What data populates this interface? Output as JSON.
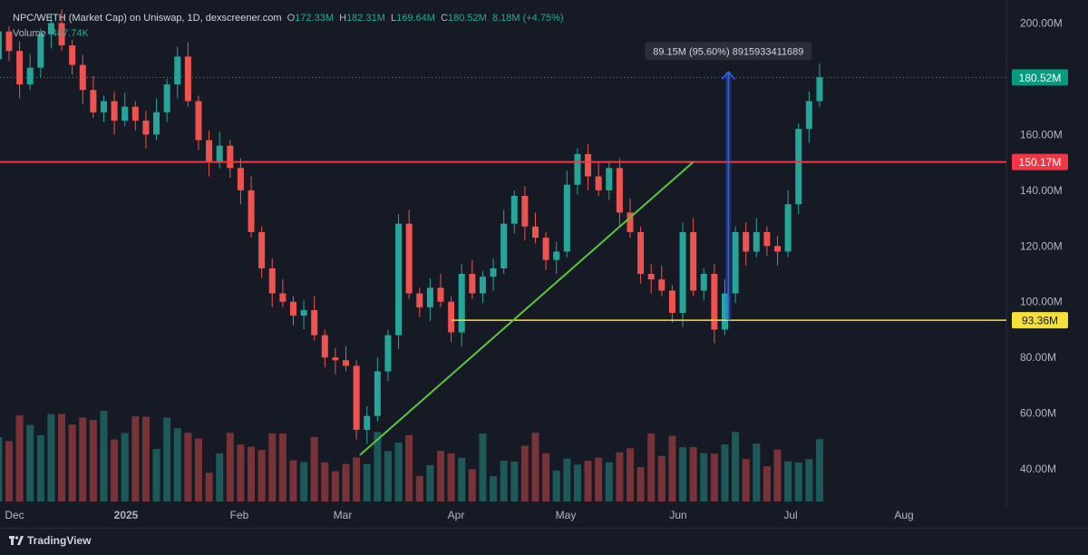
{
  "header": {
    "symbol": "NPC/WETH (Market Cap) on Uniswap, 1D, dexscreener.com",
    "open_label": "O",
    "open": "172.33M",
    "high_label": "H",
    "high": "182.31M",
    "low_label": "L",
    "low": "169.64M",
    "close_label": "C",
    "close": "180.52M",
    "change": "8.18M (+4.75%)",
    "volume_label": "Volume",
    "volume": "487.74K"
  },
  "colors": {
    "background": "#161a25",
    "up": "#26a69a",
    "down": "#ef5350",
    "resistance": "#f23645",
    "support": "#f5e13a",
    "trendline": "#5cc83c",
    "measure": "#2962ff",
    "price_badge": "#089981"
  },
  "footer": {
    "brand": "TradingView",
    "logo_icon": "tradingview-logo-icon"
  },
  "chart_data": {
    "type": "candlestick",
    "y_axis": {
      "ticks": [
        "200.00M",
        "160.00M",
        "140.00M",
        "120.00M",
        "100.00M",
        "80.00M",
        "60.00M",
        "40.00M"
      ],
      "min": 27,
      "max": 207,
      "unit": "M"
    },
    "x_axis": {
      "ticks": [
        "Dec",
        "2025",
        "Feb",
        "Mar",
        "Apr",
        "May",
        "Jun",
        "Jul",
        "Aug"
      ]
    },
    "grid": false,
    "price_labels": {
      "current": "180.52M",
      "resistance": "150.17M",
      "support": "93.36M"
    },
    "annotations": {
      "measure": "89.15M (95.60%) 8915933411689"
    },
    "horizontal_lines": [
      {
        "name": "resistance",
        "value": 150.17
      },
      {
        "name": "support",
        "value": 93.36
      }
    ],
    "trendline": {
      "from": {
        "date": "2025-03-10",
        "value": 45
      },
      "to": {
        "date": "2025-06-13",
        "value": 150.17
      }
    },
    "measure": {
      "date": "2025-06-23",
      "from": 93.36,
      "to": 182.5
    },
    "candles_close": [
      [
        "2024-11-21",
        182
      ],
      [
        "2024-11-24",
        187
      ],
      [
        "2024-11-27",
        197
      ],
      [
        "2024-11-30",
        190
      ],
      [
        "2024-12-03",
        178
      ],
      [
        "2024-12-06",
        184
      ],
      [
        "2024-12-09",
        196
      ],
      [
        "2024-12-12",
        200
      ],
      [
        "2024-12-15",
        192
      ],
      [
        "2024-12-18",
        185
      ],
      [
        "2024-12-21",
        176
      ],
      [
        "2024-12-24",
        168
      ],
      [
        "2024-12-27",
        172
      ],
      [
        "2024-12-30",
        165
      ],
      [
        "2025-01-02",
        170
      ],
      [
        "2025-01-05",
        165
      ],
      [
        "2025-01-08",
        160
      ],
      [
        "2025-01-11",
        168
      ],
      [
        "2025-01-14",
        178
      ],
      [
        "2025-01-17",
        188
      ],
      [
        "2025-01-20",
        172
      ],
      [
        "2025-01-23",
        158
      ],
      [
        "2025-01-26",
        150
      ],
      [
        "2025-01-29",
        156
      ],
      [
        "2025-02-01",
        148
      ],
      [
        "2025-02-04",
        140
      ],
      [
        "2025-02-07",
        125
      ],
      [
        "2025-02-10",
        112
      ],
      [
        "2025-02-13",
        103
      ],
      [
        "2025-02-16",
        100
      ],
      [
        "2025-02-19",
        95
      ],
      [
        "2025-02-22",
        97
      ],
      [
        "2025-02-25",
        88
      ],
      [
        "2025-02-28",
        80
      ],
      [
        "2025-03-03",
        79
      ],
      [
        "2025-03-06",
        77
      ],
      [
        "2025-03-09",
        54
      ],
      [
        "2025-03-12",
        59
      ],
      [
        "2025-03-15",
        75
      ],
      [
        "2025-03-18",
        88
      ],
      [
        "2025-03-21",
        128
      ],
      [
        "2025-03-24",
        103
      ],
      [
        "2025-03-27",
        98
      ],
      [
        "2025-03-30",
        105
      ],
      [
        "2025-04-02",
        100
      ],
      [
        "2025-04-05",
        89
      ],
      [
        "2025-04-08",
        110
      ],
      [
        "2025-04-11",
        103
      ],
      [
        "2025-04-14",
        109
      ],
      [
        "2025-04-17",
        112
      ],
      [
        "2025-04-20",
        128
      ],
      [
        "2025-04-23",
        138
      ],
      [
        "2025-04-26",
        127
      ],
      [
        "2025-04-29",
        123
      ],
      [
        "2025-05-02",
        115
      ],
      [
        "2025-05-05",
        118
      ],
      [
        "2025-05-08",
        142
      ],
      [
        "2025-05-11",
        153
      ],
      [
        "2025-05-14",
        145
      ],
      [
        "2025-05-17",
        140
      ],
      [
        "2025-05-20",
        148
      ],
      [
        "2025-05-23",
        132
      ],
      [
        "2025-05-26",
        125
      ],
      [
        "2025-05-29",
        110
      ],
      [
        "2025-06-01",
        108
      ],
      [
        "2025-06-04",
        104
      ],
      [
        "2025-06-07",
        96
      ],
      [
        "2025-06-10",
        125
      ],
      [
        "2025-06-13",
        104
      ],
      [
        "2025-06-16",
        110
      ],
      [
        "2025-06-19",
        90
      ],
      [
        "2025-06-22",
        103
      ],
      [
        "2025-06-25",
        125
      ],
      [
        "2025-06-28",
        118
      ],
      [
        "2025-07-01",
        125
      ],
      [
        "2025-07-04",
        120
      ],
      [
        "2025-07-07",
        118
      ],
      [
        "2025-07-10",
        135
      ],
      [
        "2025-07-13",
        162
      ],
      [
        "2025-07-16",
        172
      ],
      [
        "2025-07-19",
        180.52
      ]
    ]
  }
}
